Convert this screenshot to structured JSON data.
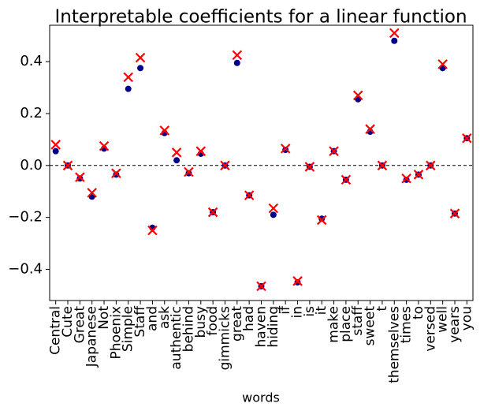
{
  "chart_data": {
    "type": "scatter",
    "title": "Interpretable coefficients for a linear function",
    "xlabel": "words",
    "categories": [
      "Central",
      "Cute",
      "Great",
      "Japanese",
      "Not",
      "Phoenix",
      "Simple",
      "Staff",
      "and",
      "ask",
      "authentic",
      "behind",
      "busy",
      "food",
      "gimmicks",
      "great",
      "had",
      "haven",
      "hiding",
      "if",
      "in",
      "is",
      "it",
      "make",
      "place",
      "staff",
      "sweet",
      "t",
      "themselves",
      "times",
      "to",
      "versed",
      "well",
      "years",
      "you"
    ],
    "series": [
      {
        "color": "#00008b",
        "marker": "o",
        "values": [
          0.055,
          0,
          -0.05,
          -0.12,
          0.065,
          -0.035,
          0.295,
          0.375,
          -0.24,
          0.125,
          0.02,
          -0.03,
          0.045,
          -0.18,
          0,
          0.395,
          -0.115,
          -0.465,
          -0.19,
          0.06,
          -0.45,
          -0.005,
          -0.205,
          0.055,
          -0.055,
          0.255,
          0.13,
          0,
          0.48,
          -0.055,
          -0.035,
          0,
          0.375,
          -0.185,
          0.105
        ]
      },
      {
        "color": "#ff0000",
        "marker": "x",
        "values": [
          0.08,
          0,
          -0.045,
          -0.105,
          0.075,
          -0.03,
          0.34,
          0.415,
          -0.25,
          0.135,
          0.05,
          -0.025,
          0.055,
          -0.18,
          0,
          0.425,
          -0.115,
          -0.465,
          -0.165,
          0.065,
          -0.445,
          -0.005,
          -0.21,
          0.055,
          -0.055,
          0.27,
          0.14,
          0,
          0.51,
          -0.05,
          -0.035,
          0,
          0.39,
          -0.185,
          0.105
        ]
      }
    ],
    "ylim": [
      -0.52,
      0.54
    ],
    "yticks": [
      {
        "value": -0.4,
        "label": "−0.4"
      },
      {
        "value": -0.2,
        "label": "−0.2"
      },
      {
        "value": 0,
        "label": "0.0"
      },
      {
        "value": 0.2,
        "label": "0.2"
      },
      {
        "value": 0.4,
        "label": "0.4"
      }
    ],
    "zero_line": true
  }
}
